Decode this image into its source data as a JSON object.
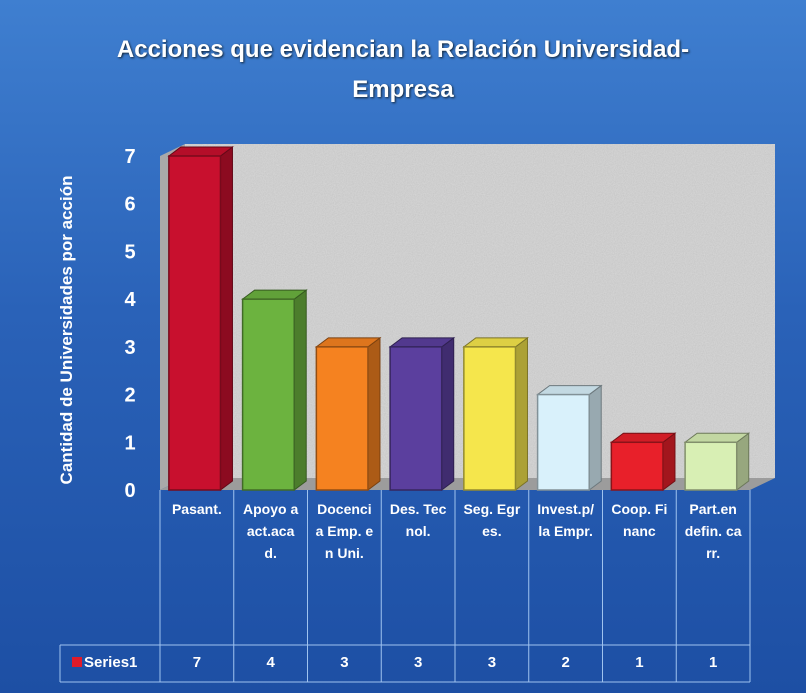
{
  "chart_data": {
    "type": "bar3d",
    "title": "Acciones que evidencian la Relación Universidad-Empresa",
    "y_axis_label": "Cantidad de Universidades por acción",
    "categories": [
      "Pasant.",
      "Apoyo a act.acad.",
      "Docencia Emp. en Uni.",
      "Des. Tecnol.",
      "Seg. Egres.",
      "Invest.p/la Empr.",
      "Coop. Financ",
      "Part.en defin. carr."
    ],
    "series": [
      {
        "name": "Series1",
        "color": "#e01b2a",
        "values": [
          7,
          4,
          3,
          3,
          3,
          2,
          1,
          1
        ]
      }
    ],
    "colors": [
      "#c8102e",
      "#6cb33f",
      "#f58220",
      "#5b3f9e",
      "#f5e64c",
      "#d9f1fb",
      "#e8202a",
      "#d8efb4"
    ],
    "ylim": [
      0,
      7
    ],
    "yticks": [
      0,
      1,
      2,
      3,
      4,
      5,
      6,
      7
    ],
    "data_table": true
  }
}
